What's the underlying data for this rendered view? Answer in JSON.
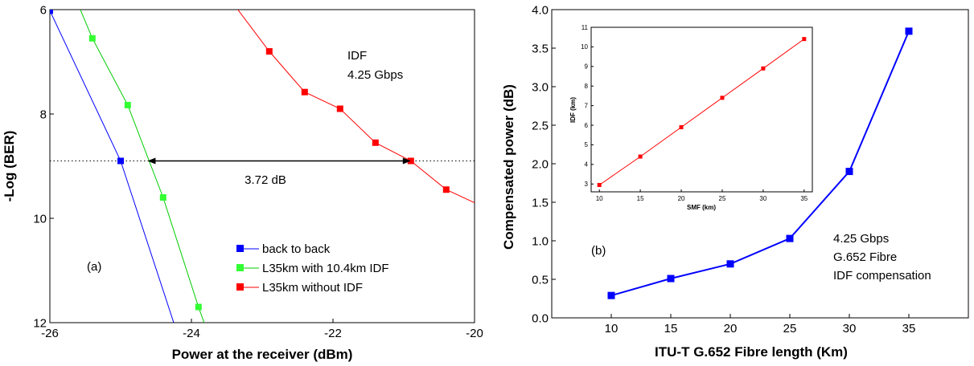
{
  "chart_data": [
    {
      "type": "line",
      "xlabel": "Power at the receiver (dBm)",
      "ylabel": "-Log (BER)",
      "xlim": [
        -26,
        -20
      ],
      "ylim": [
        6,
        12
      ],
      "y_inverted": true,
      "x_ticks": [
        "-26",
        "-24",
        "-22",
        "-20"
      ],
      "y_ticks": [
        "6",
        "8",
        "10",
        "12"
      ],
      "series": [
        {
          "name": "back to back",
          "color": "#0000ff",
          "marker_color": "#0000ff",
          "x": [
            -26.0,
            -25.0
          ],
          "y": [
            6.02,
            8.9
          ],
          "line_extends_to": [
            -24.25,
            12.0
          ]
        },
        {
          "name": "L35km with 10.4km IDF",
          "color": "#00cc00",
          "marker_color": "#33ff33",
          "x": [
            -25.4,
            -24.9,
            -24.4,
            -23.9
          ],
          "y": [
            6.55,
            7.83,
            9.6,
            11.7
          ],
          "line_extends_to": [
            [
              -25.6,
              5.9
            ],
            [
              -23.82,
              12.0
            ]
          ]
        },
        {
          "name": "L35km without IDF",
          "color": "#ff0000",
          "marker_color": "#ff0000",
          "x": [
            -23.4,
            -22.9,
            -22.4,
            -21.9,
            -21.4,
            -20.9,
            -20.4
          ],
          "y": [
            5.9,
            6.8,
            7.58,
            7.9,
            8.55,
            8.9,
            9.45
          ],
          "line_extends_to": [
            -20.0,
            9.7
          ]
        }
      ],
      "reference_line": {
        "y": 8.9,
        "style": "dotted"
      },
      "arrow": {
        "x_from": -24.62,
        "x_to": -20.9,
        "y": 8.9,
        "label": "3.72 dB"
      },
      "annotations": [
        "IDF",
        "4.25 Gbps",
        "(a)"
      ],
      "legend_position": "bottom-center"
    },
    {
      "type": "line",
      "xlabel": "ITU-T G.652 Fibre length (Km)",
      "ylabel": "Compensated power (dB)",
      "xlim": [
        5,
        40
      ],
      "ylim": [
        0.0,
        4.0
      ],
      "x_ticks": [
        "10",
        "15",
        "20",
        "25",
        "30",
        "35"
      ],
      "y_ticks": [
        "0.0",
        "0.5",
        "1.0",
        "1.5",
        "2.0",
        "2.5",
        "3.0",
        "3.5",
        "4.0"
      ],
      "series": [
        {
          "color": "#0000ff",
          "x": [
            10,
            15,
            20,
            25,
            30,
            35
          ],
          "y": [
            0.29,
            0.51,
            0.7,
            1.03,
            1.9,
            3.72
          ]
        }
      ],
      "annotations": [
        "(b)",
        "4.25 Gbps",
        "G.652 Fibre",
        "IDF compensation"
      ]
    },
    {
      "type": "line",
      "inset": true,
      "xlabel": "SMF (km)",
      "ylabel": "IDF (km)",
      "xlim": [
        9,
        36
      ],
      "ylim": [
        2.6,
        11
      ],
      "x_ticks": [
        "10",
        "15",
        "20",
        "25",
        "30",
        "35"
      ],
      "y_ticks": [
        "3",
        "4",
        "5",
        "6",
        "7",
        "8",
        "9",
        "10",
        "11"
      ],
      "series": [
        {
          "color": "#ff0000",
          "x": [
            10,
            15,
            20,
            25,
            30,
            35
          ],
          "y": [
            2.95,
            4.4,
            5.9,
            7.4,
            8.9,
            10.4
          ]
        }
      ]
    }
  ]
}
